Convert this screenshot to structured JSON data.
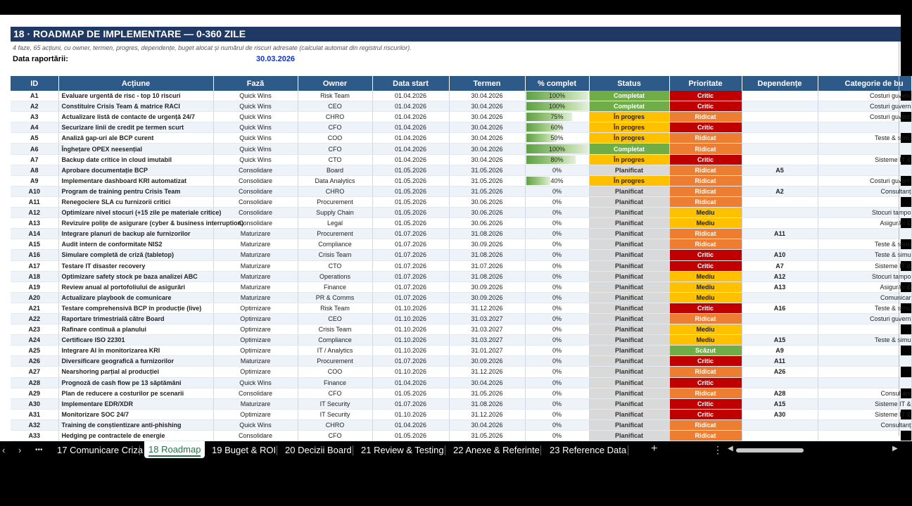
{
  "sheet": {
    "title": "18 · ROADMAP DE IMPLEMENTARE — 0-360 ZILE",
    "subtitle": "4 faze, 65 acțiuni, cu owner, termen, progres, dependențe, buget alocat și numărul de riscuri adresate (calculat automat din registrul riscurilor).",
    "report_label": "Data raportării:",
    "report_date": "30.03.2026",
    "columns": [
      "ID",
      "Acțiune",
      "Fază",
      "Owner",
      "Data start",
      "Termen",
      "% complet",
      "Status",
      "Prioritate",
      "Dependențe",
      "Categorie de bu"
    ],
    "rows": [
      {
        "id": "A1",
        "action": "Evaluare urgentă de risc - top 10 riscuri",
        "phase": "Quick Wins",
        "owner": "Risk Team",
        "start": "01.04.2026",
        "end": "30.04.2026",
        "pct": "100%",
        "progress": 1.0,
        "status": "Completat",
        "status_kind": "done",
        "priority": "Critic",
        "priority_kind": "crit",
        "dep": "",
        "cat": "Costuri guvern"
      },
      {
        "id": "A2",
        "action": "Constituire Crisis Team & matrice RACI",
        "phase": "Quick Wins",
        "owner": "CEO",
        "start": "01.04.2026",
        "end": "30.04.2026",
        "pct": "100%",
        "progress": 1.0,
        "status": "Completat",
        "status_kind": "done",
        "priority": "Critic",
        "priority_kind": "crit",
        "dep": "",
        "cat": "Costuri guvern"
      },
      {
        "id": "A3",
        "action": "Actualizare listă de contacte de urgență 24/7",
        "phase": "Quick Wins",
        "owner": "CHRO",
        "start": "01.04.2026",
        "end": "30.04.2026",
        "pct": "75%",
        "progress": 0.75,
        "status": "În progres",
        "status_kind": "prog",
        "priority": "Ridicat",
        "priority_kind": "high",
        "dep": "",
        "cat": "Costuri guvern"
      },
      {
        "id": "A4",
        "action": "Securizare linii de credit pe termen scurt",
        "phase": "Quick Wins",
        "owner": "CFO",
        "start": "01.04.2026",
        "end": "30.04.2026",
        "pct": "60%",
        "progress": 0.6,
        "status": "În progres",
        "status_kind": "prog",
        "priority": "Critic",
        "priority_kind": "crit",
        "dep": "",
        "cat": ""
      },
      {
        "id": "A5",
        "action": "Analiză gap-uri ale BCP curent",
        "phase": "Quick Wins",
        "owner": "COO",
        "start": "01.04.2026",
        "end": "30.04.2026",
        "pct": "50%",
        "progress": 0.5,
        "status": "În progres",
        "status_kind": "prog",
        "priority": "Ridicat",
        "priority_kind": "high",
        "dep": "",
        "cat": "Teste & simu"
      },
      {
        "id": "A6",
        "action": "Înghețare OPEX neesențial",
        "phase": "Quick Wins",
        "owner": "CFO",
        "start": "01.04.2026",
        "end": "30.04.2026",
        "pct": "100%",
        "progress": 1.0,
        "status": "Completat",
        "status_kind": "done",
        "priority": "Ridicat",
        "priority_kind": "high",
        "dep": "",
        "cat": ""
      },
      {
        "id": "A7",
        "action": "Backup date critice în cloud imutabil",
        "phase": "Quick Wins",
        "owner": "CTO",
        "start": "01.04.2026",
        "end": "30.04.2026",
        "pct": "80%",
        "progress": 0.8,
        "status": "În progres",
        "status_kind": "prog",
        "priority": "Critic",
        "priority_kind": "crit",
        "dep": "",
        "cat": "Sisteme IT &"
      },
      {
        "id": "A8",
        "action": "Aprobare documentație BCP",
        "phase": "Consolidare",
        "owner": "Board",
        "start": "01.05.2026",
        "end": "31.05.2026",
        "pct": "0%",
        "progress": 0,
        "status": "Planificat",
        "status_kind": "plan",
        "priority": "Ridicat",
        "priority_kind": "high",
        "dep": "A5",
        "cat": ""
      },
      {
        "id": "A9",
        "action": "Implementare dashboard KRI automatizat",
        "phase": "Consolidare",
        "owner": "Data Analytics",
        "start": "01.05.2026",
        "end": "31.05.2026",
        "pct": "40%",
        "progress": 0.4,
        "status": "În progres",
        "status_kind": "prog",
        "priority": "Ridicat",
        "priority_kind": "high",
        "dep": "",
        "cat": "Costuri guvern"
      },
      {
        "id": "A10",
        "action": "Program de training pentru Crisis Team",
        "phase": "Consolidare",
        "owner": "CHRO",
        "start": "01.05.2026",
        "end": "31.05.2026",
        "pct": "0%",
        "progress": 0,
        "status": "Planificat",
        "status_kind": "plan",
        "priority": "Ridicat",
        "priority_kind": "high",
        "dep": "A2",
        "cat": "Consultanț"
      },
      {
        "id": "A11",
        "action": "Renegociere SLA cu furnizorii critici",
        "phase": "Consolidare",
        "owner": "Procurement",
        "start": "01.05.2026",
        "end": "30.06.2026",
        "pct": "0%",
        "progress": 0,
        "status": "Planificat",
        "status_kind": "plan",
        "priority": "Ridicat",
        "priority_kind": "high",
        "dep": "",
        "cat": ""
      },
      {
        "id": "A12",
        "action": "Optimizare nivel stocuri (+15 zile pe materiale critice)",
        "phase": "Consolidare",
        "owner": "Supply Chain",
        "start": "01.05.2026",
        "end": "30.06.2026",
        "pct": "0%",
        "progress": 0,
        "status": "Planificat",
        "status_kind": "plan",
        "priority": "Mediu",
        "priority_kind": "med",
        "dep": "",
        "cat": "Stocuri tampo"
      },
      {
        "id": "A13",
        "action": "Revizuire polițe de asigurare (cyber & business interruption)",
        "phase": "Consolidare",
        "owner": "Legal",
        "start": "01.05.2026",
        "end": "30.06.2026",
        "pct": "0%",
        "progress": 0,
        "status": "Planificat",
        "status_kind": "plan",
        "priority": "Mediu",
        "priority_kind": "med",
        "dep": "",
        "cat": "Asigurări &"
      },
      {
        "id": "A14",
        "action": "Integrare planuri de backup ale furnizorilor",
        "phase": "Maturizare",
        "owner": "Procurement",
        "start": "01.07.2026",
        "end": "31.08.2026",
        "pct": "0%",
        "progress": 0,
        "status": "Planificat",
        "status_kind": "plan",
        "priority": "Ridicat",
        "priority_kind": "high",
        "dep": "A11",
        "cat": ""
      },
      {
        "id": "A15",
        "action": "Audit intern de conformitate NIS2",
        "phase": "Maturizare",
        "owner": "Compliance",
        "start": "01.07.2026",
        "end": "30.09.2026",
        "pct": "0%",
        "progress": 0,
        "status": "Planificat",
        "status_kind": "plan",
        "priority": "Ridicat",
        "priority_kind": "high",
        "dep": "",
        "cat": "Teste & simu"
      },
      {
        "id": "A16",
        "action": "Simulare completă de criză (tabletop)",
        "phase": "Maturizare",
        "owner": "Crisis Team",
        "start": "01.07.2026",
        "end": "31.08.2026",
        "pct": "0%",
        "progress": 0,
        "status": "Planificat",
        "status_kind": "plan",
        "priority": "Critic",
        "priority_kind": "crit",
        "dep": "A10",
        "cat": "Teste & simu"
      },
      {
        "id": "A17",
        "action": "Testare IT disaster recovery",
        "phase": "Maturizare",
        "owner": "CTO",
        "start": "01.07.2026",
        "end": "31.07.2026",
        "pct": "0%",
        "progress": 0,
        "status": "Planificat",
        "status_kind": "plan",
        "priority": "Critic",
        "priority_kind": "crit",
        "dep": "A7",
        "cat": "Sisteme IT &"
      },
      {
        "id": "A18",
        "action": "Optimizare safety stock pe baza analizei ABC",
        "phase": "Maturizare",
        "owner": "Operations",
        "start": "01.07.2026",
        "end": "31.08.2026",
        "pct": "0%",
        "progress": 0,
        "status": "Planificat",
        "status_kind": "plan",
        "priority": "Mediu",
        "priority_kind": "med",
        "dep": "A12",
        "cat": "Stocuri tampo"
      },
      {
        "id": "A19",
        "action": "Review anual al portofoliului de asigurări",
        "phase": "Maturizare",
        "owner": "Finance",
        "start": "01.07.2026",
        "end": "30.09.2026",
        "pct": "0%",
        "progress": 0,
        "status": "Planificat",
        "status_kind": "plan",
        "priority": "Mediu",
        "priority_kind": "med",
        "dep": "A13",
        "cat": "Asigurări &"
      },
      {
        "id": "A20",
        "action": "Actualizare playbook de comunicare",
        "phase": "Maturizare",
        "owner": "PR & Comms",
        "start": "01.07.2026",
        "end": "30.09.2026",
        "pct": "0%",
        "progress": 0,
        "status": "Planificat",
        "status_kind": "plan",
        "priority": "Mediu",
        "priority_kind": "med",
        "dep": "",
        "cat": "Comunicar"
      },
      {
        "id": "A21",
        "action": "Testare comprehensivă BCP în producție (live)",
        "phase": "Optimizare",
        "owner": "Risk Team",
        "start": "01.10.2026",
        "end": "31.12.2026",
        "pct": "0%",
        "progress": 0,
        "status": "Planificat",
        "status_kind": "plan",
        "priority": "Critic",
        "priority_kind": "crit",
        "dep": "A16",
        "cat": "Teste & simu"
      },
      {
        "id": "A22",
        "action": "Raportare trimestrială către Board",
        "phase": "Optimizare",
        "owner": "CEO",
        "start": "01.10.2026",
        "end": "31.03.2027",
        "pct": "0%",
        "progress": 0,
        "status": "Planificat",
        "status_kind": "plan",
        "priority": "Ridicat",
        "priority_kind": "high",
        "dep": "",
        "cat": "Costuri guvern"
      },
      {
        "id": "A23",
        "action": "Rafinare continuă a planului",
        "phase": "Optimizare",
        "owner": "Crisis Team",
        "start": "01.10.2026",
        "end": "31.03.2027",
        "pct": "0%",
        "progress": 0,
        "status": "Planificat",
        "status_kind": "plan",
        "priority": "Mediu",
        "priority_kind": "med",
        "dep": "",
        "cat": ""
      },
      {
        "id": "A24",
        "action": "Certificare ISO 22301",
        "phase": "Optimizare",
        "owner": "Compliance",
        "start": "01.10.2026",
        "end": "31.03.2027",
        "pct": "0%",
        "progress": 0,
        "status": "Planificat",
        "status_kind": "plan",
        "priority": "Mediu",
        "priority_kind": "med",
        "dep": "A15",
        "cat": "Teste & simu"
      },
      {
        "id": "A25",
        "action": "Integrare AI în monitorizarea KRI",
        "phase": "Optimizare",
        "owner": "IT / Analytics",
        "start": "01.10.2026",
        "end": "31.01.2027",
        "pct": "0%",
        "progress": 0,
        "status": "Planificat",
        "status_kind": "plan",
        "priority": "Scăzut",
        "priority_kind": "low",
        "dep": "A9",
        "cat": ""
      },
      {
        "id": "A26",
        "action": "Diversificare geografică a furnizorilor",
        "phase": "Maturizare",
        "owner": "Procurement",
        "start": "01.07.2026",
        "end": "30.09.2026",
        "pct": "0%",
        "progress": 0,
        "status": "Planificat",
        "status_kind": "plan",
        "priority": "Critic",
        "priority_kind": "crit",
        "dep": "A11",
        "cat": ""
      },
      {
        "id": "A27",
        "action": "Nearshoring parțial al producției",
        "phase": "Optimizare",
        "owner": "COO",
        "start": "01.10.2026",
        "end": "31.12.2026",
        "pct": "0%",
        "progress": 0,
        "status": "Planificat",
        "status_kind": "plan",
        "priority": "Ridicat",
        "priority_kind": "high",
        "dep": "A26",
        "cat": ""
      },
      {
        "id": "A28",
        "action": "Prognoză de cash flow pe 13 săptămâni",
        "phase": "Quick Wins",
        "owner": "Finance",
        "start": "01.04.2026",
        "end": "30.04.2026",
        "pct": "0%",
        "progress": 0,
        "status": "Planificat",
        "status_kind": "plan",
        "priority": "Critic",
        "priority_kind": "crit",
        "dep": "",
        "cat": ""
      },
      {
        "id": "A29",
        "action": "Plan de reducere a costurilor pe scenarii",
        "phase": "Consolidare",
        "owner": "CFO",
        "start": "01.05.2026",
        "end": "31.05.2026",
        "pct": "0%",
        "progress": 0,
        "status": "Planificat",
        "status_kind": "plan",
        "priority": "Ridicat",
        "priority_kind": "high",
        "dep": "A28",
        "cat": "Consultanț"
      },
      {
        "id": "A30",
        "action": "Implementare EDR/XDR",
        "phase": "Maturizare",
        "owner": "IT Security",
        "start": "01.07.2026",
        "end": "31.08.2026",
        "pct": "0%",
        "progress": 0,
        "status": "Planificat",
        "status_kind": "plan",
        "priority": "Critic",
        "priority_kind": "crit",
        "dep": "A15",
        "cat": "Sisteme IT &"
      },
      {
        "id": "A31",
        "action": "Monitorizare SOC 24/7",
        "phase": "Optimizare",
        "owner": "IT Security",
        "start": "01.10.2026",
        "end": "31.12.2026",
        "pct": "0%",
        "progress": 0,
        "status": "Planificat",
        "status_kind": "plan",
        "priority": "Critic",
        "priority_kind": "crit",
        "dep": "A30",
        "cat": "Sisteme IT &"
      },
      {
        "id": "A32",
        "action": "Training de conștientizare anti-phishing",
        "phase": "Quick Wins",
        "owner": "CHRO",
        "start": "01.04.2026",
        "end": "30.04.2026",
        "pct": "0%",
        "progress": 0,
        "status": "Planificat",
        "status_kind": "plan",
        "priority": "Ridicat",
        "priority_kind": "high",
        "dep": "",
        "cat": "Consultanț"
      },
      {
        "id": "A33",
        "action": "Hedging pe contractele de energie",
        "phase": "Consolidare",
        "owner": "CFO",
        "start": "01.05.2026",
        "end": "31.05.2026",
        "pct": "0%",
        "progress": 0,
        "status": "Planificat",
        "status_kind": "plan",
        "priority": "Ridicat",
        "priority_kind": "high",
        "dep": "",
        "cat": ""
      }
    ]
  },
  "tabbar": {
    "nav_prev": "‹",
    "nav_next": "›",
    "more": "•••",
    "tabs": [
      {
        "label": "17 Comunicare Criza",
        "active": false
      },
      {
        "label": "18 Roadmap",
        "active": true
      },
      {
        "label": "19 Buget & ROI",
        "active": false
      },
      {
        "label": "20 Decizii Board",
        "active": false
      },
      {
        "label": "21 Review & Testing",
        "active": false
      },
      {
        "label": "22 Anexe & Referinte",
        "active": false
      },
      {
        "label": "23 Reference Data",
        "active": false
      }
    ],
    "add_tab": "+",
    "options": "⋮"
  }
}
